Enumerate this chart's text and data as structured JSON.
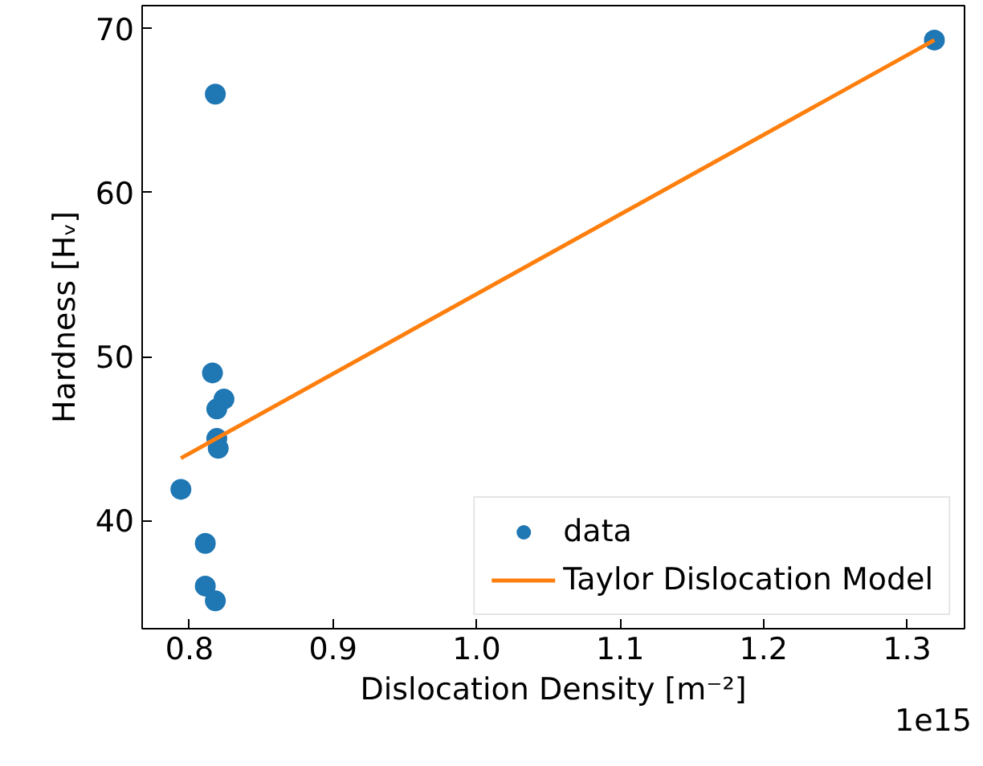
{
  "chart_data": {
    "type": "scatter",
    "xlabel": "Dislocation Density [m⁻²]",
    "ylabel": "Hardness [Hᵥ]",
    "xlim": [
      0.767,
      1.34
    ],
    "ylim": [
      33.4,
      71.4
    ],
    "xticks": [
      0.8,
      0.9,
      {
        "value": 1.0,
        "label": "1.0"
      },
      1.1,
      1.2,
      1.3
    ],
    "yticks": [
      40,
      50,
      60,
      70
    ],
    "legend": "bottom right",
    "marker": "circle",
    "annotations": [
      "1e15"
    ],
    "series": [
      {
        "name": "data",
        "color": "#1f77b4",
        "x": [
          0.818,
          0.816,
          0.824,
          0.819,
          0.819,
          0.82,
          0.794,
          0.811,
          0.811,
          0.818,
          1.319
        ],
        "values": [
          66.0,
          49.0,
          47.4,
          46.8,
          45.0,
          44.4,
          41.9,
          38.6,
          36.0,
          35.1,
          69.3
        ]
      },
      {
        "name": "Taylor Dislocation Model",
        "type": "line",
        "marker": "none",
        "line_style": "solid",
        "color": "#ff7f0e",
        "x": [
          0.794,
          1.319
        ],
        "values": [
          43.8,
          69.3
        ]
      }
    ]
  }
}
